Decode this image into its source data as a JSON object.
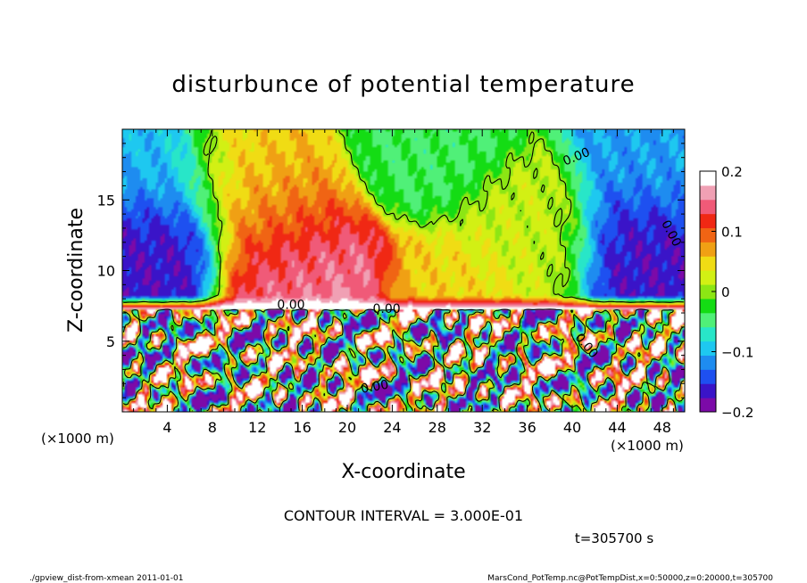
{
  "chart_data": {
    "type": "heatmap",
    "title": "disturbunce of potential temperature",
    "xlabel": "X-coordinate",
    "ylabel": "Z-coordinate",
    "x_unit": "(×1000 m)",
    "y_unit": "(×1000 m)",
    "xlim": [
      0,
      50
    ],
    "ylim": [
      0,
      20
    ],
    "x_ticks": [
      4,
      8,
      12,
      16,
      20,
      24,
      28,
      32,
      36,
      40,
      44,
      48
    ],
    "y_ticks": [
      5,
      10,
      15
    ],
    "colorbar": {
      "min": -0.2,
      "max": 0.2,
      "ticks": [
        0.2,
        0.1,
        0,
        -0.1,
        -0.2
      ],
      "tick_labels": [
        "0.2",
        "0.1",
        "0",
        "−0.1",
        "−0.2"
      ],
      "colors": [
        "#7c0aa8",
        "#3a14c8",
        "#1e50f0",
        "#1e8cf0",
        "#1ec8f0",
        "#28e6c8",
        "#50f078",
        "#14dc14",
        "#8ce614",
        "#d2f014",
        "#f0dc14",
        "#f0a014",
        "#f06414",
        "#f02814",
        "#f05a78",
        "#f0a0b4",
        "#ffffff"
      ]
    },
    "contour_labels": [
      "0.00",
      "0.00",
      "0.00",
      "0.00",
      "0.00",
      "0.00"
    ],
    "contour_interval_text": "CONTOUR INTERVAL = 3.000E-01",
    "time_label": "t=305700 s",
    "upper_field": {
      "description_free_values": true,
      "blobs": [
        {
          "x": 15.5,
          "z": 11.0,
          "v": 0.13
        },
        {
          "x": 14.0,
          "z": 14.5,
          "v": 0.08
        },
        {
          "x": 11.5,
          "z": 17.5,
          "v": 0.05
        },
        {
          "x": 17.5,
          "z": 9.0,
          "v": 0.16
        },
        {
          "x": 2.5,
          "z": 12.0,
          "v": -0.17
        },
        {
          "x": 46.5,
          "z": 12.0,
          "v": -0.17
        },
        {
          "x": 3.0,
          "z": 17.0,
          "v": -0.1
        },
        {
          "x": 48.0,
          "z": 17.0,
          "v": -0.11
        },
        {
          "x": 27.0,
          "z": 18.5,
          "v": -0.04
        },
        {
          "x": 36.0,
          "z": 12.5,
          "v": 0.02
        },
        {
          "x": 29.0,
          "z": 8.0,
          "v": 0.05
        }
      ]
    }
  },
  "footer": {
    "left": "./gpview_dist-from-xmean  2011-01-01",
    "right": "MarsCond_PotTemp.nc@PotTempDist,x=0:50000,z=0:20000,t=305700"
  }
}
